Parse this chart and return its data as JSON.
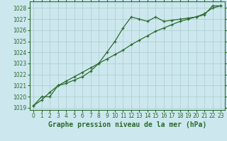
{
  "title": "Graphe pression niveau de la mer (hPa)",
  "background_color": "#cce8ee",
  "grid_color": "#aacccc",
  "line_color": "#2d6a2d",
  "xlim": [
    -0.5,
    23.5
  ],
  "ylim": [
    1018.8,
    1028.6
  ],
  "yticks": [
    1019,
    1020,
    1021,
    1022,
    1023,
    1024,
    1025,
    1026,
    1027,
    1028
  ],
  "xticks": [
    0,
    1,
    2,
    3,
    4,
    5,
    6,
    7,
    8,
    9,
    10,
    11,
    12,
    13,
    14,
    15,
    16,
    17,
    18,
    19,
    20,
    21,
    22,
    23
  ],
  "series1_x": [
    0,
    1,
    2,
    3,
    4,
    5,
    6,
    7,
    8,
    9,
    10,
    11,
    12,
    13,
    14,
    15,
    16,
    17,
    18,
    19,
    20,
    21,
    22,
    23
  ],
  "series1_y": [
    1019.2,
    1020.0,
    1020.0,
    1021.0,
    1021.2,
    1021.5,
    1021.8,
    1022.3,
    1023.0,
    1024.0,
    1025.0,
    1026.2,
    1027.2,
    1027.0,
    1026.8,
    1027.2,
    1026.8,
    1026.9,
    1027.0,
    1027.1,
    1027.2,
    1027.4,
    1028.2,
    1028.2
  ],
  "series2_x": [
    0,
    1,
    2,
    3,
    4,
    5,
    6,
    7,
    8,
    9,
    10,
    11,
    12,
    13,
    14,
    15,
    16,
    17,
    18,
    19,
    20,
    21,
    22,
    23
  ],
  "series2_y": [
    1019.2,
    1019.7,
    1020.4,
    1021.0,
    1021.4,
    1021.8,
    1022.2,
    1022.6,
    1023.0,
    1023.4,
    1023.8,
    1024.2,
    1024.7,
    1025.1,
    1025.5,
    1025.9,
    1026.2,
    1026.5,
    1026.8,
    1027.0,
    1027.2,
    1027.5,
    1028.0,
    1028.2
  ],
  "tick_fontsize": 5.5,
  "xlabel_fontsize": 7.0,
  "marker_size": 3.5,
  "line_width": 0.9
}
